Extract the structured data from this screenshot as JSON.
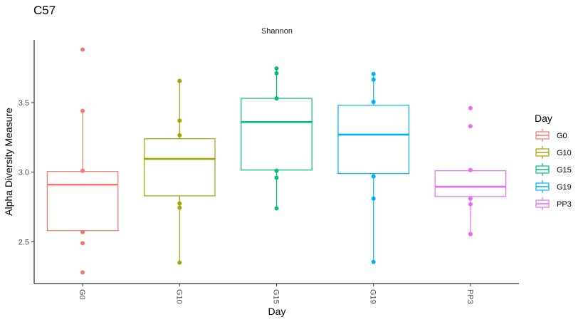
{
  "chart_data": {
    "type": "box",
    "title": "C57",
    "facet_label": "Shannon",
    "xlabel": "Day",
    "ylabel": "Alpha Diversity Measure",
    "ylim": [
      2.2,
      3.95
    ],
    "yticks": [
      "2.5",
      "3.0",
      "3.5"
    ],
    "ytick_values": [
      2.5,
      3.0,
      3.5
    ],
    "grid": false,
    "legend": {
      "title": "Day",
      "placement": "right"
    },
    "categories": [
      "G0",
      "G10",
      "G15",
      "G19",
      "PP3"
    ],
    "series": [
      {
        "name": "G0",
        "color": "#F8766D",
        "box": {
          "q1": 2.58,
          "median": 2.91,
          "q3": 3.005,
          "whisker_low": 2.58,
          "whisker_high": 3.44
        },
        "points": [
          3.88,
          3.44,
          3.01,
          2.57,
          2.49,
          2.28
        ]
      },
      {
        "name": "G10",
        "color": "#A3A500",
        "box": {
          "q1": 2.83,
          "median": 3.095,
          "q3": 3.24,
          "whisker_low": 2.35,
          "whisker_high": 3.655
        },
        "points": [
          3.655,
          3.37,
          3.265,
          2.775,
          2.745,
          2.35
        ]
      },
      {
        "name": "G15",
        "color": "#00BF7D",
        "box": {
          "q1": 3.015,
          "median": 3.36,
          "q3": 3.53,
          "whisker_low": 2.74,
          "whisker_high": 3.745
        },
        "points": [
          3.745,
          3.71,
          3.53,
          3.01,
          2.96,
          2.74
        ]
      },
      {
        "name": "G19",
        "color": "#00B0F6",
        "box": {
          "q1": 2.99,
          "median": 3.27,
          "q3": 3.48,
          "whisker_low": 2.355,
          "whisker_high": 3.705
        },
        "points": [
          3.705,
          3.665,
          3.505,
          2.97,
          2.81,
          2.355
        ]
      },
      {
        "name": "PP3",
        "color": "#E76BF3",
        "box": {
          "q1": 2.825,
          "median": 2.895,
          "q3": 3.01,
          "whisker_low": 2.555,
          "whisker_high": 3.01
        },
        "points": [
          3.46,
          3.33,
          3.015,
          2.81,
          2.77,
          2.555
        ]
      }
    ]
  }
}
